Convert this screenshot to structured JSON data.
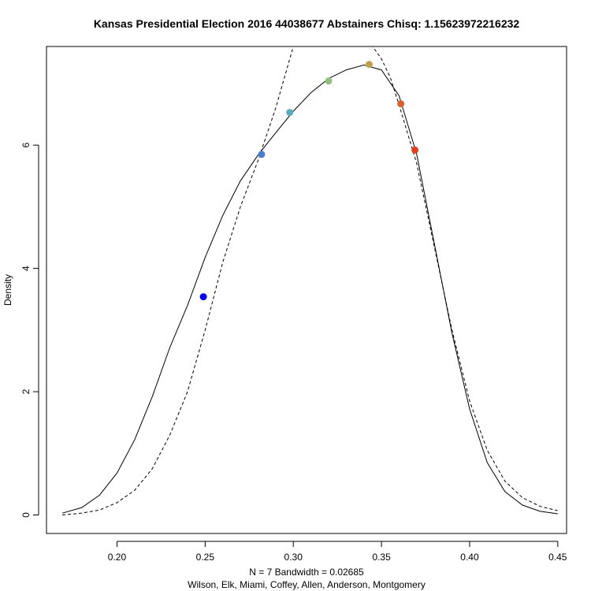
{
  "chart_data": {
    "type": "line",
    "title": "Kansas Presidential Election 2016 44038677 Abstainers Chisq: 1.15623972216232",
    "xlabel": "N = 7   Bandwidth = 0.02685",
    "sublabel": "Wilson, Elk, Miami, Coffey, Allen, Anderson, Montgomery",
    "ylabel": "Density",
    "xlim": [
      0.16,
      0.455
    ],
    "ylim": [
      -0.3,
      7.6
    ],
    "x_ticks": [
      "0.20",
      "0.25",
      "0.30",
      "0.35",
      "0.40",
      "0.45"
    ],
    "y_ticks": [
      "0",
      "2",
      "4",
      "6"
    ],
    "grid": false,
    "bandwidth": 0.02685,
    "series": [
      {
        "style": "solid",
        "x": [
          0.169,
          0.18,
          0.19,
          0.2,
          0.21,
          0.22,
          0.23,
          0.24,
          0.25,
          0.26,
          0.27,
          0.28,
          0.29,
          0.3,
          0.31,
          0.32,
          0.33,
          0.34,
          0.35,
          0.36,
          0.37,
          0.38,
          0.39,
          0.4,
          0.41,
          0.42,
          0.43,
          0.44,
          0.45
        ],
        "y": [
          0.03,
          0.12,
          0.32,
          0.68,
          1.22,
          1.92,
          2.72,
          3.4,
          4.18,
          4.86,
          5.42,
          5.84,
          6.2,
          6.55,
          6.85,
          7.08,
          7.22,
          7.3,
          7.22,
          6.8,
          5.85,
          4.4,
          2.95,
          1.72,
          0.85,
          0.38,
          0.16,
          0.06,
          0.02
        ]
      },
      {
        "style": "dashed",
        "x": [
          0.169,
          0.18,
          0.19,
          0.2,
          0.21,
          0.22,
          0.23,
          0.24,
          0.25,
          0.26,
          0.27,
          0.28,
          0.29,
          0.295,
          0.3,
          0.345,
          0.35,
          0.355,
          0.36,
          0.37,
          0.38,
          0.39,
          0.4,
          0.41,
          0.42,
          0.43,
          0.44,
          0.45
        ],
        "y": [
          0.0,
          0.03,
          0.08,
          0.2,
          0.4,
          0.75,
          1.3,
          2.0,
          3.0,
          4.1,
          5.0,
          5.75,
          6.6,
          7.1,
          7.6,
          7.6,
          7.4,
          7.1,
          6.65,
          5.7,
          4.35,
          3.0,
          1.85,
          1.05,
          0.55,
          0.28,
          0.14,
          0.07
        ]
      }
    ],
    "points": [
      {
        "x": 0.249,
        "y": 3.54,
        "color": "#0000ee"
      },
      {
        "x": 0.282,
        "y": 5.85,
        "color": "#4a7fd0"
      },
      {
        "x": 0.298,
        "y": 6.53,
        "color": "#5aacb8"
      },
      {
        "x": 0.32,
        "y": 7.04,
        "color": "#90c080"
      },
      {
        "x": 0.343,
        "y": 7.31,
        "color": "#c0a050"
      },
      {
        "x": 0.361,
        "y": 6.67,
        "color": "#d86030"
      },
      {
        "x": 0.369,
        "y": 5.92,
        "color": "#e04020"
      }
    ]
  }
}
